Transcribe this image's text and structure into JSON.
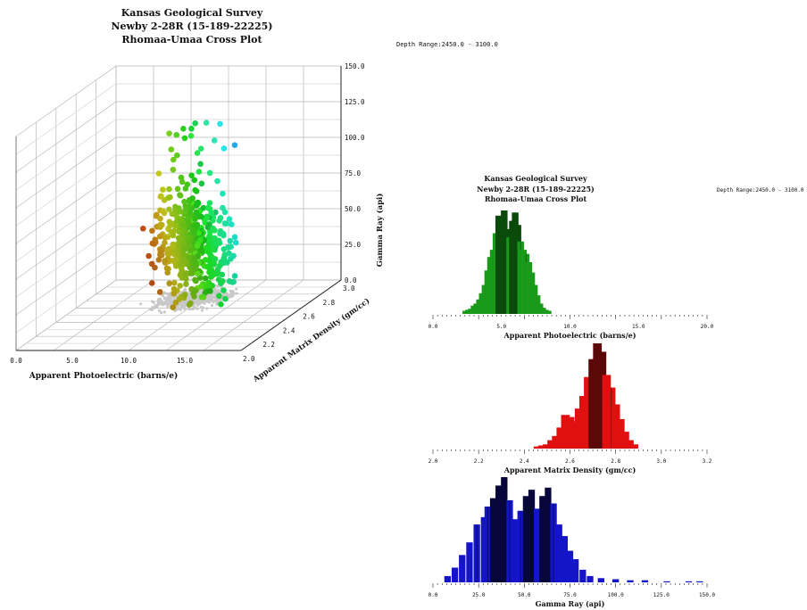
{
  "title3d": [
    "Kansas Geological Survey",
    "Newby 2-28R (15-189-22225)",
    "Rhomaa-Umaa Cross Plot"
  ],
  "depth_range_main": "Depth Range:2450.0 - 3100.0",
  "title_small": [
    "Kansas Geological Survey",
    "Newby 2-28R (15-189-22225)",
    "Rhomaa-Umaa Cross Plot"
  ],
  "depth_range_small": "Depth Range:2450.0 - 3100.0",
  "chart_data": [
    {
      "type": "scatter",
      "dimensions": 3,
      "xlabel": "Apparent Photoelectric (barns/e)",
      "ylabel": "Apparent Matrix Density (gm/cc)",
      "zlabel": "Gamma Ray (api)",
      "x_ticks": [
        "0.0",
        "5.0",
        "10.0",
        "15.0"
      ],
      "y_ticks": [
        "2.0",
        "2.2",
        "2.4",
        "2.6",
        "2.8",
        "3.0"
      ],
      "z_ticks": [
        "0.0",
        "25.0",
        "50.0",
        "75.0",
        "100.0",
        "125.0",
        "150.0"
      ],
      "xlim": [
        0,
        20
      ],
      "ylim": [
        2.0,
        3.0
      ],
      "zlim": [
        0,
        150
      ],
      "grid": true,
      "projection_color": "#c8c8c8"
    },
    {
      "type": "bar",
      "histogram": true,
      "xlabel": "Apparent Photoelectric (barns/e)",
      "x_ticks": [
        "0.0",
        "5.0",
        "10.0",
        "15.0",
        "20.0"
      ],
      "xlim": [
        0,
        20
      ],
      "color": "#1a9a1a",
      "highlight_color": "#0a4a0a",
      "bins": [
        [
          2.4,
          3
        ],
        [
          2.6,
          4
        ],
        [
          2.8,
          5
        ],
        [
          3.0,
          8
        ],
        [
          3.2,
          10
        ],
        [
          3.4,
          14
        ],
        [
          3.6,
          20
        ],
        [
          3.8,
          28
        ],
        [
          4.0,
          42
        ],
        [
          4.2,
          55
        ],
        [
          4.4,
          62
        ],
        [
          4.6,
          78
        ],
        [
          4.8,
          95
        ],
        [
          5.0,
          88
        ],
        [
          5.2,
          100
        ],
        [
          5.4,
          82
        ],
        [
          5.6,
          74
        ],
        [
          5.8,
          90
        ],
        [
          6.0,
          98
        ],
        [
          6.2,
          86
        ],
        [
          6.4,
          70
        ],
        [
          6.6,
          62
        ],
        [
          6.8,
          58
        ],
        [
          7.0,
          50
        ],
        [
          7.2,
          40
        ],
        [
          7.4,
          28
        ],
        [
          7.6,
          18
        ],
        [
          7.8,
          10
        ],
        [
          8.0,
          6
        ],
        [
          8.2,
          4
        ],
        [
          8.4,
          3
        ]
      ]
    },
    {
      "type": "bar",
      "histogram": true,
      "xlabel": "Apparent Matrix Density (gm/cc)",
      "x_ticks": [
        "2.0",
        "2.2",
        "2.4",
        "2.6",
        "2.8",
        "3.0",
        "3.2"
      ],
      "xlim": [
        2.0,
        3.2
      ],
      "color": "#e01010",
      "highlight_color": "#5a0808",
      "bins": [
        [
          2.46,
          2
        ],
        [
          2.48,
          3
        ],
        [
          2.5,
          4
        ],
        [
          2.52,
          8
        ],
        [
          2.54,
          12
        ],
        [
          2.56,
          20
        ],
        [
          2.58,
          32
        ],
        [
          2.6,
          30
        ],
        [
          2.62,
          26
        ],
        [
          2.64,
          38
        ],
        [
          2.66,
          50
        ],
        [
          2.68,
          68
        ],
        [
          2.7,
          85
        ],
        [
          2.72,
          100
        ],
        [
          2.74,
          92
        ],
        [
          2.76,
          70
        ],
        [
          2.78,
          58
        ],
        [
          2.8,
          42
        ],
        [
          2.82,
          28
        ],
        [
          2.84,
          16
        ],
        [
          2.86,
          8
        ],
        [
          2.88,
          4
        ]
      ]
    },
    {
      "type": "bar",
      "histogram": true,
      "xlabel": "Gamma Ray (api)",
      "x_ticks": [
        "0.0",
        "25.0",
        "50.0",
        "75.0",
        "100.0",
        "125.0",
        "150.0"
      ],
      "xlim": [
        0,
        150
      ],
      "color": "#1414c8",
      "highlight_color": "#06063a",
      "bins": [
        [
          8,
          6
        ],
        [
          12,
          14
        ],
        [
          16,
          26
        ],
        [
          20,
          38
        ],
        [
          24,
          55
        ],
        [
          28,
          62
        ],
        [
          30,
          72
        ],
        [
          33,
          80
        ],
        [
          36,
          92
        ],
        [
          39,
          100
        ],
        [
          42,
          78
        ],
        [
          45,
          60
        ],
        [
          48,
          68
        ],
        [
          51,
          82
        ],
        [
          54,
          88
        ],
        [
          57,
          70
        ],
        [
          60,
          82
        ],
        [
          63,
          90
        ],
        [
          66,
          75
        ],
        [
          69,
          55
        ],
        [
          72,
          44
        ],
        [
          75,
          30
        ],
        [
          78,
          22
        ],
        [
          82,
          12
        ],
        [
          86,
          6
        ],
        [
          92,
          4
        ],
        [
          100,
          3
        ],
        [
          108,
          2
        ],
        [
          116,
          2
        ],
        [
          128,
          1
        ],
        [
          140,
          1
        ],
        [
          146,
          1
        ]
      ]
    }
  ]
}
